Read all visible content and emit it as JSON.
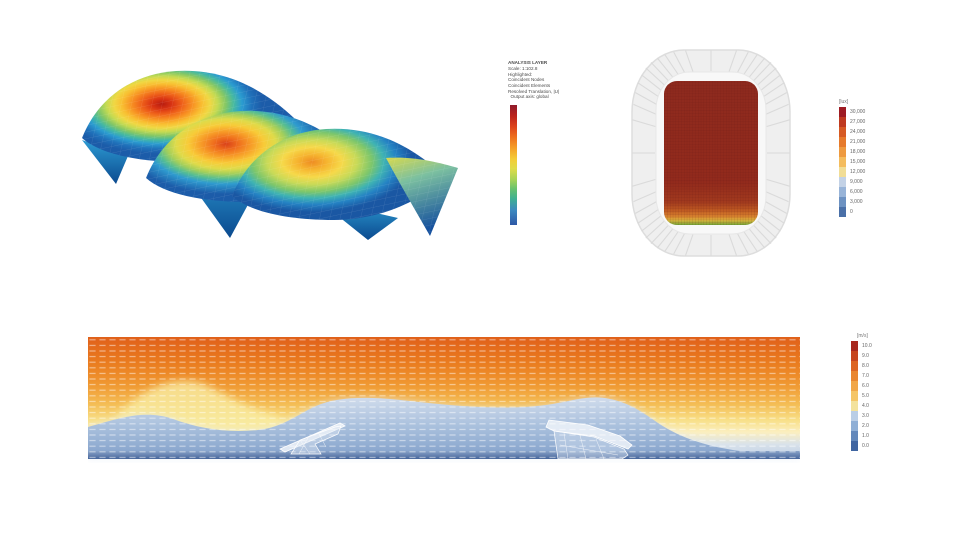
{
  "page": {
    "background": "#ffffff"
  },
  "analysis_panel": {
    "title": "ANALYSIS LAYER",
    "lines": [
      "Scale: 1:102.8",
      "Highlighted:",
      "Coincident Nodes",
      "Coincident Elements",
      "Resolved Translation, |U|",
      "  Output axis: global"
    ],
    "colorbar": "continuous jet colormap, red (max) to blue (min), unlabeled"
  },
  "lux_legend": {
    "unit": "[lux]",
    "labels": [
      "30,000",
      "27,000",
      "24,000",
      "21,000",
      "18,000",
      "15,000",
      "12,000",
      "9,000",
      "6,000",
      "3,000",
      "0"
    ],
    "colors": [
      "#9e1b23",
      "#bf3a20",
      "#d65a24",
      "#e67a2c",
      "#ee9a40",
      "#f4bc5e",
      "#f1dd96",
      "#c3d2e6",
      "#98b4d8",
      "#6d92c2",
      "#4a70a8"
    ]
  },
  "wind_legend": {
    "unit": "[m/s]",
    "labels": [
      "10.0",
      "9.0",
      "8.0",
      "7.0",
      "6.0",
      "5.0",
      "4.0",
      "3.0",
      "2.0",
      "1.0",
      "0.0"
    ],
    "colors": [
      "#a8281e",
      "#c6451e",
      "#dc6522",
      "#e9862f",
      "#f1a647",
      "#f5c566",
      "#f3e29c",
      "#bacee6",
      "#8fafd6",
      "#6288bb",
      "#3f65a1"
    ]
  },
  "chart_data": [
    {
      "type": "heatmap",
      "name": "membrane-displacement-3d-surface",
      "description": "Isometric 3D view of three saddle-shaped membrane canopy modules stepping down left-to-right, contour-coloured with a jet colormap; red/orange displacement hotspots at each module centre fading through yellow and green to blue edges; dark blue triangular membrane fins hang below the front edges",
      "colormap": "jet (blue min to red max)",
      "annotation": {
        "title": "ANALYSIS LAYER",
        "scale": "Scale: 1:102.8",
        "highlighted": [
          "Coincident Nodes",
          "Coincident Elements"
        ],
        "result": "Resolved Translation, |U|",
        "output_axis": "Output axis: global"
      },
      "legend": "vertical continuous colorbar, no tick labels"
    },
    {
      "type": "heatmap",
      "name": "stadium-daylight-plan",
      "unit": "[lux]",
      "ticks": [
        30000,
        27000,
        24000,
        21000,
        18000,
        15000,
        12000,
        9000,
        6000,
        3000,
        0
      ],
      "description": "Plan view of stadium with white pleated fabric roof ring; inner rectangular field grid almost uniformly at maximum (dark red, ~30,000 lux) with a thin gradient band of orange, yellow and green along the bottom edge",
      "palette": {
        "field_max": "#8e2a1e",
        "edge_orange": "#d8822e",
        "edge_green": "#6f9b33",
        "roof": "#efefef"
      }
    },
    {
      "type": "heatmap",
      "name": "wind-velocity-section",
      "unit": "[m/s]",
      "ticks": [
        10.0,
        9.0,
        8.0,
        7.0,
        6.0,
        5.0,
        4.0,
        3.0,
        2.0,
        1.0,
        0.0
      ],
      "description": "Vertical CFD section: high-speed orange flow (~8-10 m/s) across the top, yellow transition band rising over a hill on the left, large slow blue wake (~0-3 m/s) between and behind two white-outlined grandstand structures, thin dark blue ground boundary layer; regular grid of small white velocity vector dashes over the whole domain",
      "palette": {
        "fast": "#e0601a",
        "mid": "#f8df87",
        "slow": "#7e9dc8",
        "ground": "#46659b"
      }
    }
  ]
}
